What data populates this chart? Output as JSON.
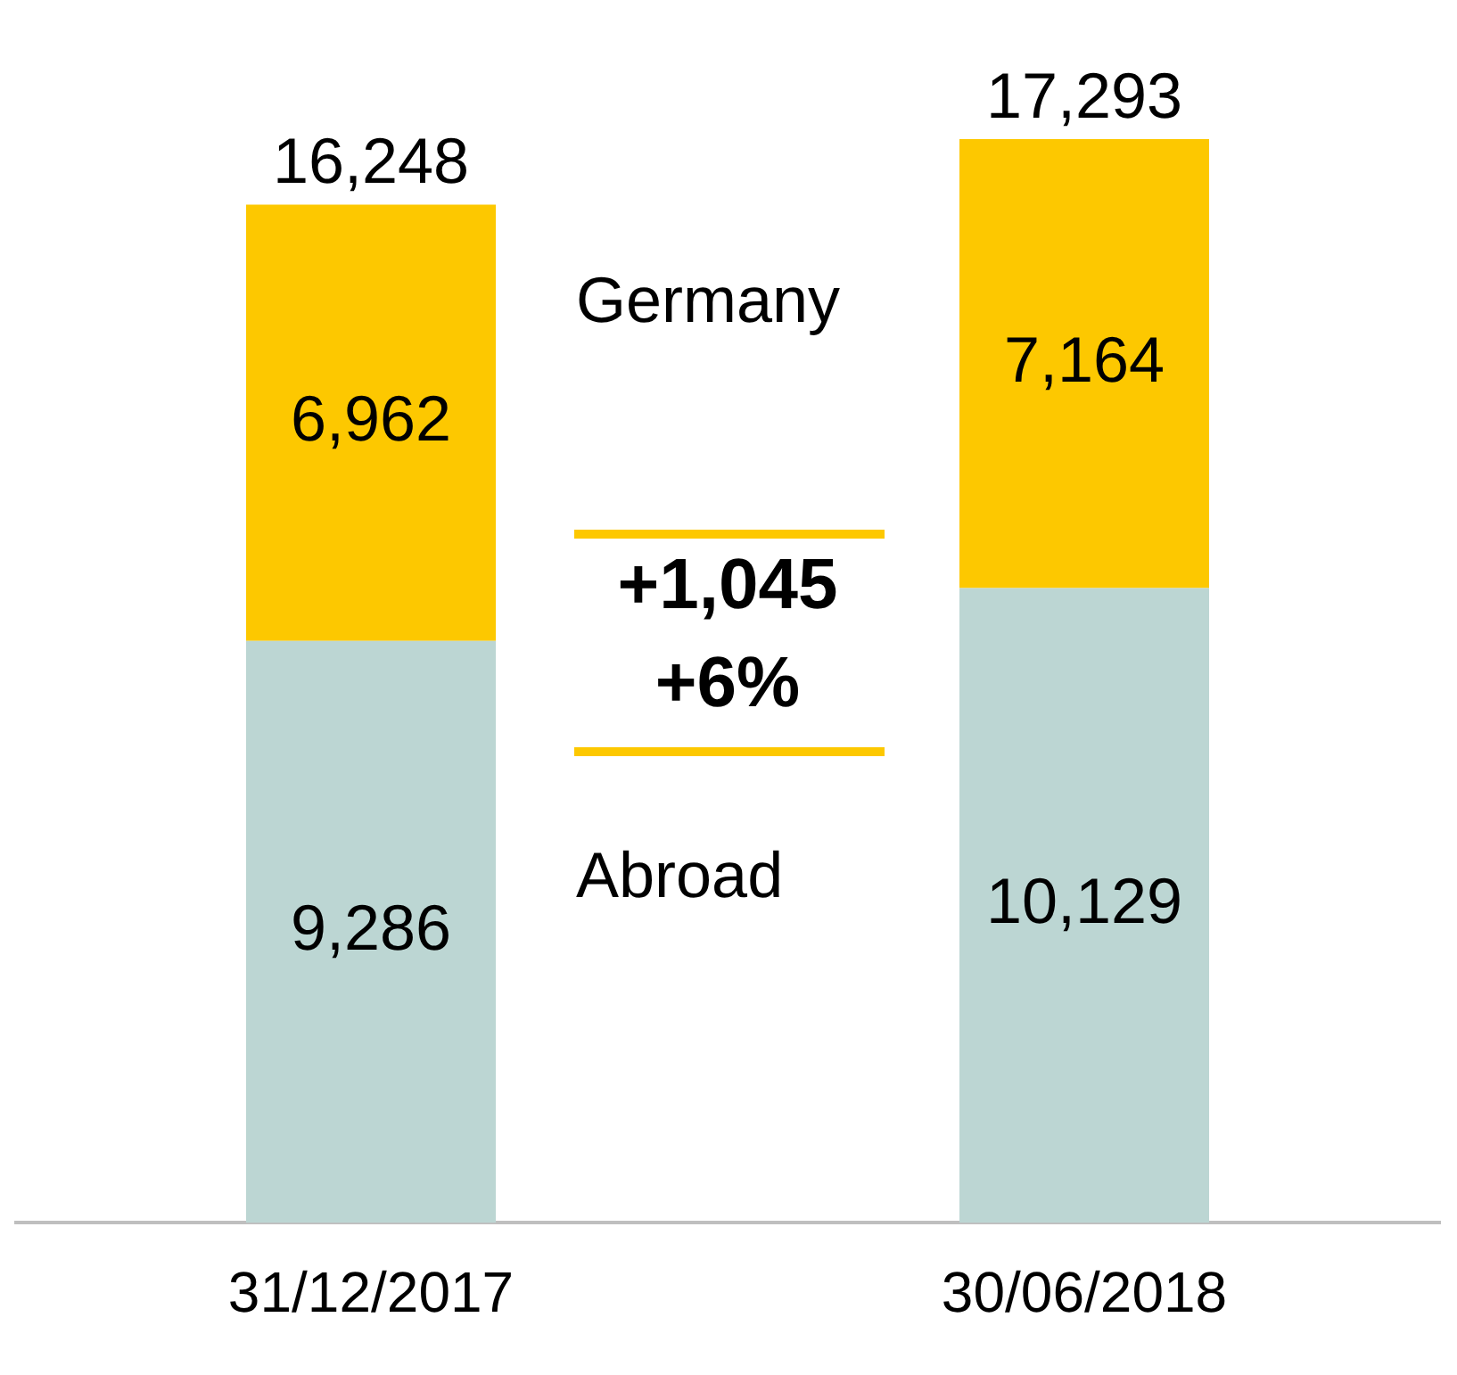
{
  "chart_data": {
    "type": "bar",
    "stacked": true,
    "categories": [
      "31/12/2017",
      "30/06/2018"
    ],
    "series": [
      {
        "name": "Abroad",
        "color": "#bcd6d3",
        "values": [
          9286,
          10129
        ],
        "value_labels": [
          "9,286",
          "10,129"
        ]
      },
      {
        "name": "Germany",
        "color": "#fdc800",
        "values": [
          6962,
          7164
        ],
        "value_labels": [
          "6,962",
          "7,164"
        ]
      }
    ],
    "totals": [
      "16,248",
      "17,293"
    ],
    "legend": false,
    "grid": false,
    "annotations": [
      "+1,045",
      "+6%"
    ]
  }
}
